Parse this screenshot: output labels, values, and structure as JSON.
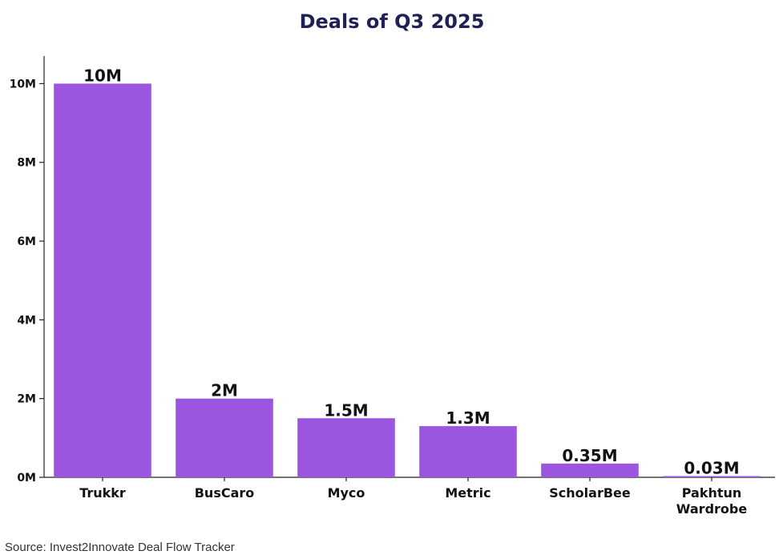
{
  "chart_data": {
    "type": "bar",
    "title": "Deals of Q3 2025",
    "xlabel": "",
    "ylabel": "",
    "ylim": [
      0,
      10700000
    ],
    "yticks": [
      {
        "value": 0,
        "label": "0M"
      },
      {
        "value": 2000000,
        "label": "2M"
      },
      {
        "value": 4000000,
        "label": "4M"
      },
      {
        "value": 6000000,
        "label": "6M"
      },
      {
        "value": 8000000,
        "label": "8M"
      },
      {
        "value": 10000000,
        "label": "10M"
      }
    ],
    "categories": [
      "Trukkr",
      "BusCaro",
      "Myco",
      "Metric",
      "ScholarBee",
      "Pakhtun Wardrobe"
    ],
    "category_lines": [
      [
        "Trukkr"
      ],
      [
        "BusCaro"
      ],
      [
        "Myco"
      ],
      [
        "Metric"
      ],
      [
        "ScholarBee"
      ],
      [
        "Pakhtun",
        "Wardrobe"
      ]
    ],
    "values": [
      10000000,
      2000000,
      1500000,
      1300000,
      350000,
      30000
    ],
    "data_labels": [
      "10M",
      "2M",
      "1.5M",
      "1.3M",
      "0.35M",
      "0.03M"
    ],
    "bar_color": "#9b55de",
    "grid": false,
    "legend": "none"
  },
  "source": "Source: Invest2Innovate Deal Flow Tracker",
  "colors": {
    "title": "#1e2153",
    "axis": "#222222",
    "text": "#111111"
  }
}
